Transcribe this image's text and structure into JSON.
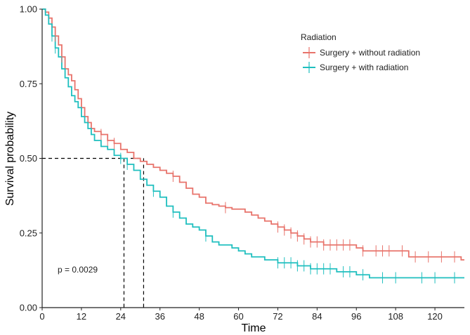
{
  "chart_data": {
    "type": "line",
    "subtype": "kaplan-meier step curve",
    "xlabel": "Time",
    "ylabel": "Survival probability",
    "xlim": [
      0,
      129
    ],
    "ylim": [
      0,
      1
    ],
    "xticks": [
      0,
      12,
      24,
      36,
      48,
      60,
      72,
      84,
      96,
      108,
      120
    ],
    "yticks": [
      0.0,
      0.25,
      0.5,
      0.75,
      1.0
    ],
    "ytick_labels": [
      "0.00",
      "0.25",
      "0.50",
      "0.75",
      "1.00"
    ],
    "grid": false,
    "legend": {
      "title": "Radiation",
      "placement": "top-right"
    },
    "annotation": "p = 0.0029",
    "median_lines": {
      "y": 0.5,
      "x_values": [
        25,
        31
      ],
      "style": "dashed"
    },
    "series": [
      {
        "name": "Surgery + without radiation",
        "color": "#E8736B",
        "x": [
          0,
          1,
          2,
          3,
          4,
          5,
          6,
          7,
          8,
          9,
          10,
          11,
          12,
          13,
          14,
          15,
          16,
          18,
          20,
          22,
          24,
          26,
          28,
          30,
          32,
          34,
          36,
          38,
          40,
          42,
          44,
          46,
          48,
          50,
          52,
          54,
          56,
          58,
          60,
          62,
          64,
          66,
          68,
          70,
          72,
          74,
          76,
          78,
          80,
          82,
          84,
          86,
          88,
          90,
          92,
          94,
          96,
          98,
          100,
          102,
          104,
          106,
          108,
          112,
          116,
          120,
          124,
          128
        ],
        "y": [
          1.0,
          0.99,
          0.97,
          0.94,
          0.91,
          0.88,
          0.84,
          0.8,
          0.78,
          0.76,
          0.73,
          0.7,
          0.67,
          0.64,
          0.62,
          0.6,
          0.59,
          0.58,
          0.56,
          0.55,
          0.53,
          0.52,
          0.5,
          0.49,
          0.48,
          0.47,
          0.46,
          0.45,
          0.44,
          0.42,
          0.4,
          0.38,
          0.37,
          0.35,
          0.345,
          0.34,
          0.335,
          0.33,
          0.33,
          0.32,
          0.31,
          0.3,
          0.29,
          0.28,
          0.27,
          0.26,
          0.25,
          0.24,
          0.23,
          0.22,
          0.22,
          0.21,
          0.21,
          0.21,
          0.21,
          0.21,
          0.2,
          0.19,
          0.19,
          0.19,
          0.19,
          0.19,
          0.19,
          0.17,
          0.17,
          0.17,
          0.17,
          0.16
        ],
        "censor_x": [
          4,
          6,
          18,
          20,
          22,
          40,
          56,
          72,
          74,
          76,
          78,
          80,
          82,
          84,
          86,
          88,
          90,
          92,
          94,
          98,
          102,
          104,
          106,
          110,
          114,
          118,
          122,
          126
        ]
      },
      {
        "name": "Surgery + with radiation",
        "color": "#1FBFBF",
        "x": [
          0,
          1,
          2,
          3,
          4,
          5,
          6,
          7,
          8,
          9,
          10,
          11,
          12,
          13,
          14,
          15,
          16,
          18,
          20,
          22,
          24,
          26,
          28,
          30,
          32,
          34,
          36,
          38,
          40,
          42,
          44,
          46,
          48,
          50,
          52,
          54,
          56,
          58,
          60,
          62,
          64,
          66,
          68,
          70,
          72,
          74,
          76,
          78,
          80,
          82,
          84,
          86,
          88,
          90,
          92,
          94,
          96,
          98,
          100,
          104,
          108,
          116,
          120,
          128
        ],
        "y": [
          1.0,
          0.98,
          0.95,
          0.91,
          0.87,
          0.84,
          0.8,
          0.77,
          0.74,
          0.71,
          0.69,
          0.67,
          0.64,
          0.62,
          0.6,
          0.58,
          0.56,
          0.54,
          0.53,
          0.51,
          0.5,
          0.48,
          0.46,
          0.43,
          0.41,
          0.39,
          0.37,
          0.34,
          0.32,
          0.3,
          0.28,
          0.27,
          0.26,
          0.24,
          0.22,
          0.21,
          0.21,
          0.2,
          0.19,
          0.18,
          0.17,
          0.17,
          0.16,
          0.16,
          0.15,
          0.15,
          0.15,
          0.14,
          0.14,
          0.13,
          0.13,
          0.13,
          0.13,
          0.12,
          0.12,
          0.12,
          0.11,
          0.11,
          0.1,
          0.1,
          0.1,
          0.1,
          0.1,
          0.1
        ],
        "censor_x": [
          3,
          4,
          24,
          26,
          34,
          40,
          50,
          72,
          74,
          76,
          78,
          80,
          82,
          84,
          86,
          88,
          92,
          94,
          98,
          104,
          108,
          116,
          120,
          126
        ]
      }
    ]
  }
}
